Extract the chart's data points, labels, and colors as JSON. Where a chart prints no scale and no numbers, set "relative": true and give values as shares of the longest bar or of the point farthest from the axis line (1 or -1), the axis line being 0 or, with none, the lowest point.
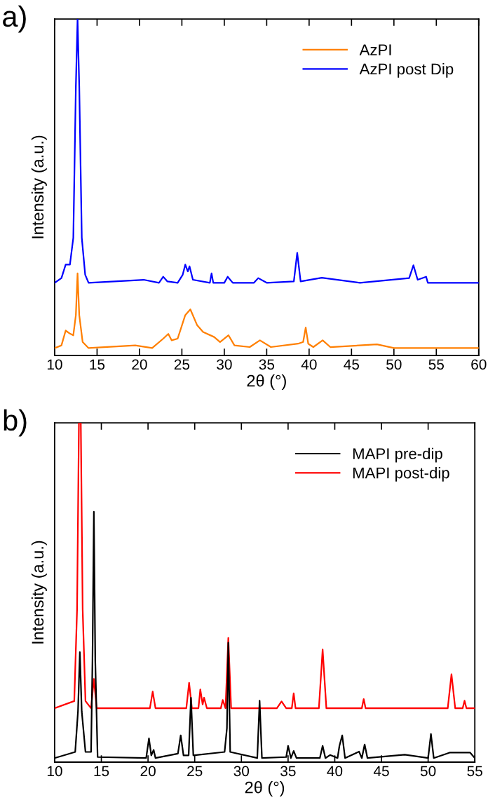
{
  "chart_data": [
    {
      "type": "line",
      "relative": true,
      "xlabel": "2θ (°)",
      "ylabel": "Intensity (a.u.)",
      "annotations": [
        "a)"
      ],
      "legend": "top right",
      "xlim": [
        10,
        60
      ],
      "xticks": [
        10,
        15,
        20,
        25,
        30,
        35,
        40,
        45,
        50,
        55,
        60
      ],
      "series": [
        {
          "name": "AzPI",
          "color": "#ff7f00",
          "x": [
            10,
            10.8,
            11.3,
            11.8,
            12.2,
            12.5,
            12.7,
            12.9,
            13.3,
            14,
            19.5,
            21.5,
            22.8,
            23.4,
            23.8,
            24.5,
            25.4,
            26,
            26.8,
            27.5,
            28.8,
            29.5,
            30.5,
            31.2,
            33,
            34.2,
            35.5,
            38.7,
            39.3,
            39.6,
            39.9,
            40.5,
            41.6,
            42.5,
            48,
            50,
            60
          ],
          "values": [
            0.022,
            0.03,
            0.074,
            0.065,
            0.06,
            0.12,
            0.244,
            0.12,
            0.04,
            0.022,
            0.03,
            0.022,
            0.05,
            0.064,
            0.045,
            0.05,
            0.12,
            0.137,
            0.09,
            0.07,
            0.055,
            0.04,
            0.06,
            0.03,
            0.025,
            0.045,
            0.025,
            0.035,
            0.04,
            0.083,
            0.035,
            0.025,
            0.045,
            0.025,
            0.033,
            0.022,
            0.022
          ]
        },
        {
          "name": "AzPI post Dip",
          "color": "#0000ff",
          "x": [
            10,
            10.8,
            11.3,
            11.8,
            12.2,
            12.5,
            12.7,
            12.9,
            13.2,
            13.6,
            14,
            20.5,
            22.3,
            22.8,
            23.3,
            24.5,
            25.1,
            25.4,
            25.7,
            25.9,
            26.3,
            28.3,
            28.5,
            28.7,
            30,
            30.4,
            31,
            33.5,
            34,
            35,
            38.2,
            38.6,
            39,
            41.5,
            46,
            51.8,
            52.3,
            52.8,
            53.8,
            54,
            60
          ],
          "values": [
            0.216,
            0.23,
            0.27,
            0.27,
            0.35,
            0.8,
            1.0,
            0.8,
            0.35,
            0.24,
            0.216,
            0.225,
            0.216,
            0.234,
            0.22,
            0.216,
            0.24,
            0.27,
            0.25,
            0.265,
            0.225,
            0.216,
            0.244,
            0.216,
            0.216,
            0.234,
            0.216,
            0.216,
            0.23,
            0.216,
            0.22,
            0.305,
            0.22,
            0.231,
            0.216,
            0.23,
            0.268,
            0.225,
            0.234,
            0.216,
            0.216
          ]
        }
      ]
    },
    {
      "type": "line",
      "relative": true,
      "xlabel": "2θ (°)",
      "ylabel": "Intensity (a.u.)",
      "annotations": [
        "b)"
      ],
      "legend": "top right",
      "xlim": [
        10,
        55
      ],
      "xticks": [
        10,
        15,
        20,
        25,
        30,
        35,
        40,
        45,
        50,
        55
      ],
      "series": [
        {
          "name": "MAPI pre-dip",
          "color": "#000000",
          "x": [
            10,
            12.2,
            12.5,
            12.7,
            12.9,
            13.3,
            13.9,
            14.05,
            14.2,
            14.35,
            14.6,
            19.8,
            20.1,
            20.35,
            20.6,
            20.8,
            23.2,
            23.5,
            23.8,
            24.35,
            24.6,
            24.85,
            28.2,
            28.45,
            28.6,
            28.8,
            31.7,
            31.95,
            32.2,
            34.8,
            35.0,
            35.3,
            35.6,
            35.9,
            38.4,
            38.7,
            39.0,
            39.5,
            40.3,
            40.5,
            40.8,
            41.1,
            42.6,
            42.9,
            43.2,
            43.5,
            47.5,
            50.0,
            50.3,
            50.6,
            52.3,
            54.5,
            55
          ],
          "values": [
            0.012,
            0.03,
            0.15,
            0.324,
            0.15,
            0.03,
            0.03,
            0.3,
            0.738,
            0.3,
            0.015,
            0.012,
            0.07,
            0.02,
            0.036,
            0.012,
            0.025,
            0.079,
            0.02,
            0.02,
            0.19,
            0.02,
            0.03,
            0.1,
            0.352,
            0.03,
            0.012,
            0.181,
            0.012,
            0.015,
            0.048,
            0.012,
            0.033,
            0.012,
            0.012,
            0.048,
            0.012,
            0.021,
            0.012,
            0.048,
            0.079,
            0.012,
            0.031,
            0.012,
            0.052,
            0.012,
            0.022,
            0.012,
            0.083,
            0.012,
            0.028,
            0.028,
            0.012
          ]
        },
        {
          "name": "MAPI post-dip",
          "color": "#ff0000",
          "x": [
            10,
            12.1,
            12.4,
            12.6,
            12.8,
            13.0,
            13.3,
            13.9,
            14.2,
            14.5,
            20.2,
            20.5,
            20.8,
            24.1,
            24.4,
            24.7,
            25.4,
            25.6,
            25.85,
            26.0,
            26.3,
            27.8,
            28.0,
            28.3,
            28.6,
            28.9,
            33.8,
            34.3,
            34.8,
            35.4,
            35.6,
            35.8,
            38.3,
            38.7,
            39.1,
            42.9,
            43.1,
            43.3,
            52.1,
            52.5,
            52.9,
            53.7,
            53.9,
            54.1,
            55
          ],
          "values": [
            0.159,
            0.18,
            0.45,
            1.0,
            1.0,
            0.45,
            0.18,
            0.159,
            0.245,
            0.159,
            0.159,
            0.208,
            0.159,
            0.159,
            0.234,
            0.159,
            0.159,
            0.214,
            0.17,
            0.19,
            0.159,
            0.159,
            0.183,
            0.159,
            0.366,
            0.159,
            0.159,
            0.179,
            0.159,
            0.159,
            0.203,
            0.159,
            0.159,
            0.332,
            0.159,
            0.159,
            0.186,
            0.159,
            0.159,
            0.259,
            0.159,
            0.159,
            0.181,
            0.159,
            0.159
          ]
        }
      ]
    }
  ]
}
